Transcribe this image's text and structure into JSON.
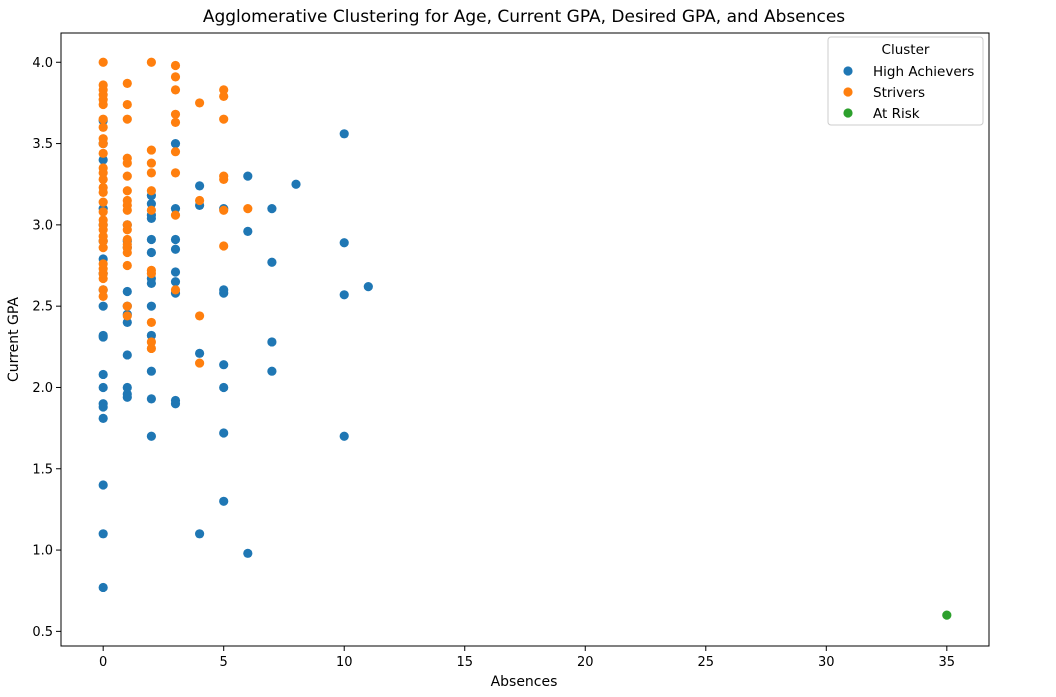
{
  "chart_data": {
    "type": "scatter",
    "title": "Agglomerative Clustering for Age, Current GPA, Desired GPA, and Absences",
    "xlabel": "Absences",
    "ylabel": "Current GPA",
    "xlim": [
      -1.75,
      36.75
    ],
    "ylim": [
      0.41,
      4.18
    ],
    "xticks": [
      "0",
      "5",
      "10",
      "15",
      "20",
      "25",
      "30",
      "35"
    ],
    "yticks": [
      "0.5",
      "1.0",
      "1.5",
      "2.0",
      "2.5",
      "3.0",
      "3.5",
      "4.0"
    ],
    "grid": false,
    "legend": {
      "title": "Cluster",
      "position": "top-right"
    },
    "series": [
      {
        "name": "High Achievers",
        "color": "#1f77b4",
        "points": [
          [
            0,
            0.77
          ],
          [
            0,
            1.1
          ],
          [
            0,
            1.4
          ],
          [
            0,
            1.81
          ],
          [
            0,
            1.88
          ],
          [
            0,
            1.9
          ],
          [
            0,
            2.0
          ],
          [
            0,
            2.08
          ],
          [
            0,
            2.31
          ],
          [
            0,
            2.32
          ],
          [
            0,
            2.5
          ],
          [
            0,
            2.6
          ],
          [
            0,
            2.7
          ],
          [
            0,
            2.79
          ],
          [
            0,
            2.9
          ],
          [
            0,
            3.0
          ],
          [
            0,
            3.1
          ],
          [
            0,
            3.4
          ],
          [
            0,
            3.5
          ],
          [
            0,
            3.64
          ],
          [
            1,
            1.94
          ],
          [
            1,
            1.96
          ],
          [
            1,
            2.0
          ],
          [
            1,
            2.2
          ],
          [
            1,
            2.4
          ],
          [
            1,
            2.45
          ],
          [
            1,
            2.5
          ],
          [
            1,
            2.59
          ],
          [
            1,
            2.86
          ],
          [
            1,
            2.9
          ],
          [
            1,
            3.0
          ],
          [
            2,
            1.7
          ],
          [
            2,
            1.93
          ],
          [
            2,
            2.1
          ],
          [
            2,
            2.32
          ],
          [
            2,
            2.5
          ],
          [
            2,
            2.64
          ],
          [
            2,
            2.67
          ],
          [
            2,
            2.83
          ],
          [
            2,
            2.91
          ],
          [
            2,
            3.04
          ],
          [
            2,
            3.06
          ],
          [
            2,
            3.13
          ],
          [
            2,
            3.18
          ],
          [
            3,
            1.9
          ],
          [
            3,
            1.92
          ],
          [
            3,
            2.58
          ],
          [
            3,
            2.65
          ],
          [
            3,
            2.71
          ],
          [
            3,
            2.85
          ],
          [
            3,
            2.91
          ],
          [
            3,
            3.1
          ],
          [
            3,
            3.5
          ],
          [
            4,
            1.1
          ],
          [
            4,
            2.21
          ],
          [
            4,
            3.12
          ],
          [
            4,
            3.24
          ],
          [
            5,
            1.3
          ],
          [
            5,
            1.72
          ],
          [
            5,
            2.0
          ],
          [
            5,
            2.14
          ],
          [
            5,
            2.58
          ],
          [
            5,
            2.6
          ],
          [
            5,
            3.1
          ],
          [
            6,
            0.98
          ],
          [
            6,
            2.96
          ],
          [
            6,
            3.3
          ],
          [
            7,
            2.1
          ],
          [
            7,
            2.28
          ],
          [
            7,
            2.77
          ],
          [
            7,
            3.1
          ],
          [
            8,
            3.25
          ],
          [
            10,
            1.7
          ],
          [
            10,
            2.57
          ],
          [
            10,
            2.89
          ],
          [
            10,
            3.56
          ],
          [
            11,
            2.62
          ]
        ]
      },
      {
        "name": "Strivers",
        "color": "#ff7f0e",
        "points": [
          [
            0,
            2.56
          ],
          [
            0,
            2.6
          ],
          [
            0,
            2.67
          ],
          [
            0,
            2.7
          ],
          [
            0,
            2.73
          ],
          [
            0,
            2.76
          ],
          [
            0,
            2.86
          ],
          [
            0,
            2.9
          ],
          [
            0,
            2.93
          ],
          [
            0,
            2.97
          ],
          [
            0,
            3.0
          ],
          [
            0,
            3.03
          ],
          [
            0,
            3.08
          ],
          [
            0,
            3.14
          ],
          [
            0,
            3.2
          ],
          [
            0,
            3.23
          ],
          [
            0,
            3.28
          ],
          [
            0,
            3.32
          ],
          [
            0,
            3.35
          ],
          [
            0,
            3.44
          ],
          [
            0,
            3.5
          ],
          [
            0,
            3.53
          ],
          [
            0,
            3.6
          ],
          [
            0,
            3.65
          ],
          [
            0,
            3.74
          ],
          [
            0,
            3.77
          ],
          [
            0,
            3.8
          ],
          [
            0,
            3.83
          ],
          [
            0,
            3.86
          ],
          [
            0,
            4.0
          ],
          [
            1,
            2.44
          ],
          [
            1,
            2.5
          ],
          [
            1,
            2.75
          ],
          [
            1,
            2.83
          ],
          [
            1,
            2.86
          ],
          [
            1,
            2.88
          ],
          [
            1,
            2.91
          ],
          [
            1,
            2.97
          ],
          [
            1,
            3.0
          ],
          [
            1,
            3.09
          ],
          [
            1,
            3.12
          ],
          [
            1,
            3.15
          ],
          [
            1,
            3.21
          ],
          [
            1,
            3.3
          ],
          [
            1,
            3.38
          ],
          [
            1,
            3.41
          ],
          [
            1,
            3.65
          ],
          [
            1,
            3.74
          ],
          [
            1,
            3.87
          ],
          [
            2,
            2.24
          ],
          [
            2,
            2.28
          ],
          [
            2,
            2.4
          ],
          [
            2,
            2.7
          ],
          [
            2,
            2.72
          ],
          [
            2,
            3.09
          ],
          [
            2,
            3.21
          ],
          [
            2,
            3.32
          ],
          [
            2,
            3.38
          ],
          [
            2,
            3.46
          ],
          [
            2,
            4.0
          ],
          [
            3,
            2.6
          ],
          [
            3,
            3.06
          ],
          [
            3,
            3.32
          ],
          [
            3,
            3.45
          ],
          [
            3,
            3.63
          ],
          [
            3,
            3.68
          ],
          [
            3,
            3.83
          ],
          [
            3,
            3.91
          ],
          [
            3,
            3.98
          ],
          [
            4,
            2.15
          ],
          [
            4,
            2.44
          ],
          [
            4,
            3.15
          ],
          [
            4,
            3.75
          ],
          [
            5,
            2.87
          ],
          [
            5,
            3.09
          ],
          [
            5,
            3.28
          ],
          [
            5,
            3.3
          ],
          [
            5,
            3.65
          ],
          [
            5,
            3.79
          ],
          [
            5,
            3.83
          ],
          [
            6,
            3.1
          ]
        ]
      },
      {
        "name": "At Risk",
        "color": "#2ca02c",
        "points": [
          [
            35,
            0.6
          ]
        ]
      }
    ]
  }
}
